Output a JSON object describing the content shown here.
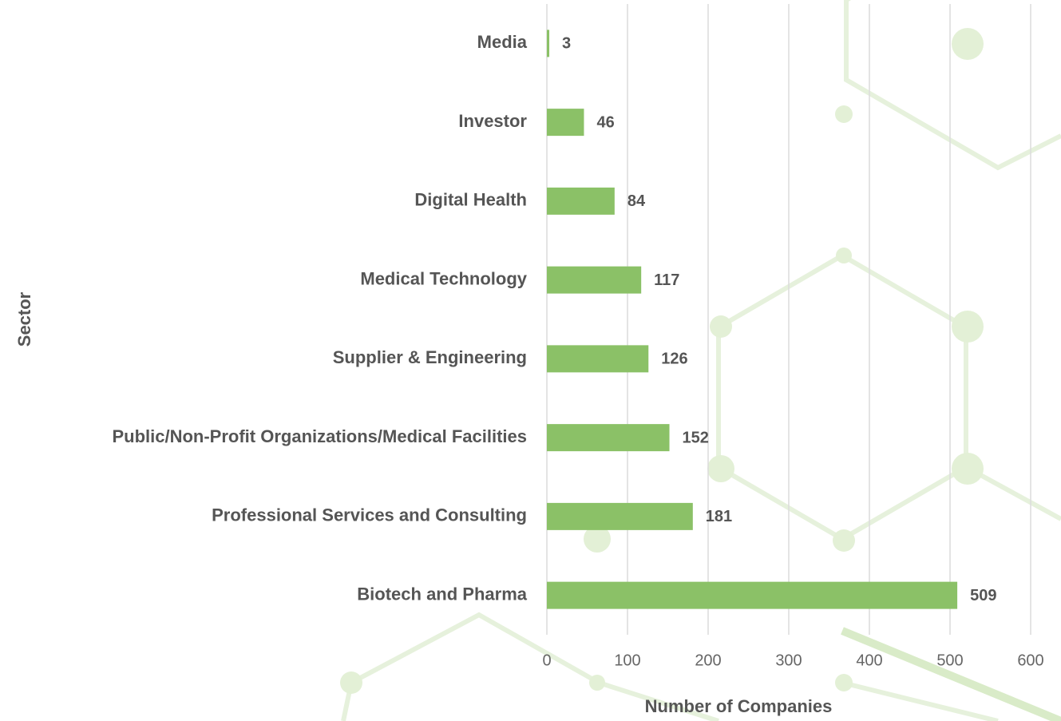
{
  "chart_data": {
    "type": "bar",
    "orientation": "horizontal",
    "x_label": "Number of Companies",
    "y_label": "Sector",
    "categories": [
      "Media",
      "Investor",
      "Digital Health",
      "Medical Technology",
      "Supplier & Engineering",
      "Public/Non-Profit Organizations/Medical Facilities",
      "Professional Services and Consulting",
      "Biotech and Pharma"
    ],
    "values": [
      3,
      46,
      84,
      117,
      126,
      152,
      181,
      509
    ],
    "color": "#8bc167",
    "xlim": [
      0,
      600
    ],
    "xticks": [
      0,
      100,
      200,
      300,
      400,
      500,
      600
    ],
    "grid": true
  }
}
